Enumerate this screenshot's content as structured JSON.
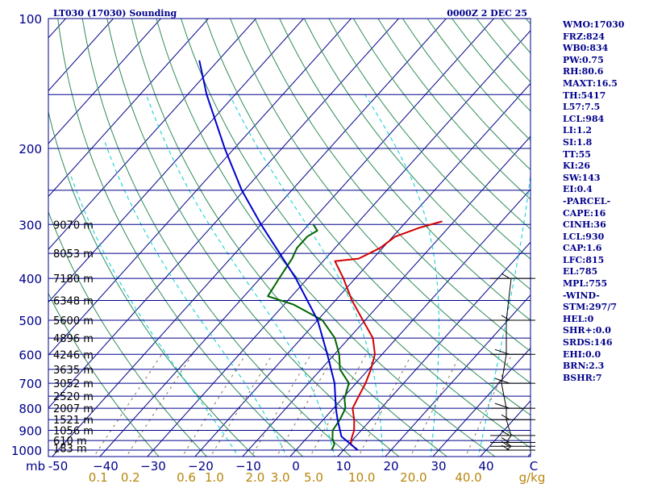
{
  "header": {
    "station": "LT030 (17030) Sounding",
    "time": "0000Z  2 DEC 25"
  },
  "axis": {
    "pressure_unit": "mb",
    "mixing_ratio_unit": "g/kg"
  },
  "stats": [
    "WMO:17030",
    "FRZ:824",
    "WB0:834",
    "PW:0.75",
    "RH:80.6",
    "MAXT:16.5",
    "TH:5417",
    "L57:7.5",
    "LCL:984",
    "LI:1.2",
    "SI:1.8",
    "TT:55",
    "KI:26",
    "SW:143",
    "EI:0.4",
    "-PARCEL-",
    "CAPE:16",
    "CINH:36",
    "LCL:930",
    "CAP:1.6",
    "LFC:815",
    "EL:785",
    "MPL:755",
    "-WIND-",
    "STM:297/7",
    "HEL:0",
    "SHR+:0.0",
    "SRDS:146",
    "EHI:0.0",
    "BRN:2.3",
    "BSHR:7"
  ],
  "colors": {
    "isobar": "#00008b",
    "isotherm": "#00008b",
    "dry_adiabat": "#2e8b57",
    "moist_adiabat": "#00ced1",
    "mixing_ratio": "#8b7355",
    "temperature": "#d40000",
    "dewpoint": "#006400",
    "parcel": "#0000cd",
    "wind": "#000000",
    "text": "#00008b",
    "tick_label": "#b8860b"
  },
  "chart_data": {
    "type": "line",
    "title": "LT030 (17030) Sounding",
    "diagram": "skew-T log-P",
    "ylabel": "mb",
    "ylim": [
      1000,
      100
    ],
    "xlim": [
      -50,
      50
    ],
    "pressure_ticks": [
      {
        "p": 100,
        "label": "100"
      },
      {
        "p": 200,
        "label": "200"
      },
      {
        "p": 300,
        "label": "300"
      },
      {
        "p": 400,
        "label": "400"
      },
      {
        "p": 500,
        "label": "500"
      },
      {
        "p": 600,
        "label": "600"
      },
      {
        "p": 700,
        "label": "700"
      },
      {
        "p": 800,
        "label": "800"
      },
      {
        "p": 900,
        "label": "900"
      },
      {
        "p": 1000,
        "label": "1000"
      }
    ],
    "isobars_unlabeled": [
      150,
      250,
      350,
      450,
      550,
      650,
      750,
      850,
      950
    ],
    "height_labels": [
      {
        "p": 300,
        "label": "9070 m"
      },
      {
        "p": 350,
        "label": "8053 m"
      },
      {
        "p": 400,
        "label": "7180 m"
      },
      {
        "p": 450,
        "label": "6348 m"
      },
      {
        "p": 500,
        "label": "5600 m"
      },
      {
        "p": 550,
        "label": "4896 m"
      },
      {
        "p": 600,
        "label": "4246 m"
      },
      {
        "p": 650,
        "label": "3635 m"
      },
      {
        "p": 700,
        "label": "3052 m"
      },
      {
        "p": 750,
        "label": "2520 m"
      },
      {
        "p": 800,
        "label": "2007 m"
      },
      {
        "p": 850,
        "label": "1521 m"
      },
      {
        "p": 900,
        "label": "1056 m"
      },
      {
        "p": 950,
        "label": "610 m"
      },
      {
        "p": 990,
        "label": "183 m"
      }
    ],
    "temperature_ticks": [
      {
        "t": -50,
        "label": "-50"
      },
      {
        "t": -40,
        "label": "−40"
      },
      {
        "t": -30,
        "label": "−30"
      },
      {
        "t": -20,
        "label": "−20"
      },
      {
        "t": -10,
        "label": "−10"
      },
      {
        "t": 0,
        "label": "0"
      },
      {
        "t": 10,
        "label": "10"
      },
      {
        "t": 20,
        "label": "20"
      },
      {
        "t": 30,
        "label": "30"
      },
      {
        "t": 40,
        "label": "40"
      }
    ],
    "temperature_unit_label": "C",
    "mixing_ratio_ticks": [
      {
        "w": 0.1,
        "label": "0.1"
      },
      {
        "w": 0.2,
        "label": "0.2"
      },
      {
        "w": 0.6,
        "label": "0.6"
      },
      {
        "w": 1.0,
        "label": "1.0"
      },
      {
        "w": 2.0,
        "label": "2.0"
      },
      {
        "w": 3.0,
        "label": "3.0"
      },
      {
        "w": 5.0,
        "label": "5.0"
      },
      {
        "w": 10.0,
        "label": "10.0"
      },
      {
        "w": 20.0,
        "label": "20.0"
      },
      {
        "w": 40.0,
        "label": "40.0"
      }
    ],
    "series": [
      {
        "name": "Temperature",
        "points": [
          {
            "p": 1000,
            "t": 13.0
          },
          {
            "p": 970,
            "t": 10.5
          },
          {
            "p": 940,
            "t": 9.5
          },
          {
            "p": 900,
            "t": 8.5
          },
          {
            "p": 850,
            "t": 6.5
          },
          {
            "p": 800,
            "t": 4.0
          },
          {
            "p": 750,
            "t": 3.0
          },
          {
            "p": 700,
            "t": 2.0
          },
          {
            "p": 650,
            "t": 0.5
          },
          {
            "p": 600,
            "t": -1.5
          },
          {
            "p": 550,
            "t": -5.0
          },
          {
            "p": 500,
            "t": -10.5
          },
          {
            "p": 450,
            "t": -16.5
          },
          {
            "p": 400,
            "t": -22.5
          },
          {
            "p": 365,
            "t": -27.5
          },
          {
            "p": 360,
            "t": -23.0
          },
          {
            "p": 340,
            "t": -20.5
          },
          {
            "p": 320,
            "t": -19.5
          },
          {
            "p": 305,
            "t": -16.0
          },
          {
            "p": 295,
            "t": -12.5
          }
        ]
      },
      {
        "name": "Dewpoint",
        "points": [
          {
            "p": 1000,
            "t": 7.5
          },
          {
            "p": 970,
            "t": 7.0
          },
          {
            "p": 940,
            "t": 5.5
          },
          {
            "p": 900,
            "t": 4.0
          },
          {
            "p": 850,
            "t": 3.5
          },
          {
            "p": 800,
            "t": 2.5
          },
          {
            "p": 760,
            "t": 0.5
          },
          {
            "p": 700,
            "t": -1.5
          },
          {
            "p": 650,
            "t": -6.0
          },
          {
            "p": 600,
            "t": -9.0
          },
          {
            "p": 550,
            "t": -13.0
          },
          {
            "p": 500,
            "t": -19.0
          },
          {
            "p": 460,
            "t": -28.0
          },
          {
            "p": 440,
            "t": -35.0
          },
          {
            "p": 400,
            "t": -36.0
          },
          {
            "p": 360,
            "t": -37.0
          },
          {
            "p": 340,
            "t": -38.0
          },
          {
            "p": 320,
            "t": -38.0
          },
          {
            "p": 310,
            "t": -37.0
          },
          {
            "p": 300,
            "t": -39.0
          }
        ]
      },
      {
        "name": "Parcel",
        "points": [
          {
            "p": 1000,
            "t": 13.0
          },
          {
            "p": 930,
            "t": 7.0
          },
          {
            "p": 850,
            "t": 3.0
          },
          {
            "p": 800,
            "t": 0.5
          },
          {
            "p": 700,
            "t": -4.5
          },
          {
            "p": 600,
            "t": -11.5
          },
          {
            "p": 500,
            "t": -20.0
          },
          {
            "p": 400,
            "t": -32.5
          },
          {
            "p": 300,
            "t": -50.0
          },
          {
            "p": 250,
            "t": -60.5
          },
          {
            "p": 200,
            "t": -72.0
          },
          {
            "p": 150,
            "t": -86.0
          },
          {
            "p": 125,
            "t": -94.0
          }
        ]
      }
    ],
    "wind_profile": [
      {
        "p": 1000,
        "speed_kt": 5
      },
      {
        "p": 980,
        "speed_kt": 5
      },
      {
        "p": 960,
        "speed_kt": 5
      },
      {
        "p": 925,
        "speed_kt": 5
      },
      {
        "p": 850,
        "speed_kt": 5
      },
      {
        "p": 800,
        "speed_kt": 10
      },
      {
        "p": 700,
        "speed_kt": 10
      },
      {
        "p": 600,
        "speed_kt": 10
      },
      {
        "p": 500,
        "speed_kt": 5
      },
      {
        "p": 400,
        "speed_kt": 5
      }
    ]
  }
}
